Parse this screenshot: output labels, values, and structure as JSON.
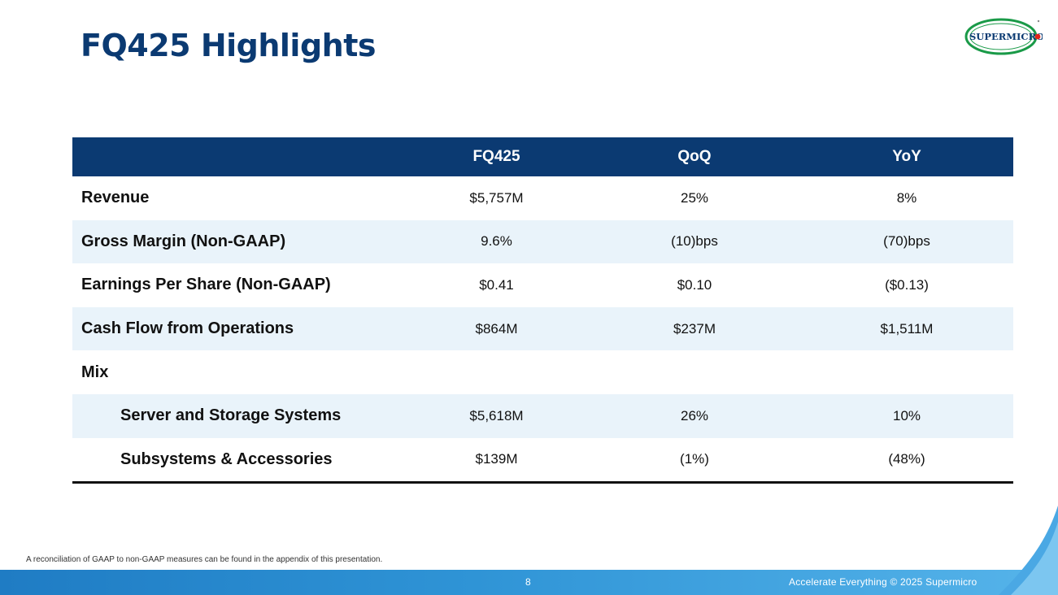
{
  "title": "FQ425 Highlights",
  "logo": {
    "text": "SUPERMICRO"
  },
  "table": {
    "headers": [
      "",
      "FQ425",
      "QoQ",
      "YoY"
    ],
    "rows": [
      {
        "label": "Revenue",
        "fq": "$5,757M",
        "qoq": "25%",
        "yoy": "8%"
      },
      {
        "label": "Gross Margin (Non-GAAP)",
        "fq": "9.6%",
        "qoq": "(10)bps",
        "yoy": "(70)bps"
      },
      {
        "label": "Earnings Per Share (Non-GAAP)",
        "fq": "$0.41",
        "qoq": "$0.10",
        "yoy": "($0.13)"
      },
      {
        "label": "Cash Flow from Operations",
        "fq": "$864M",
        "qoq": "$237M",
        "yoy": "$1,511M"
      },
      {
        "label": "Mix",
        "fq": "",
        "qoq": "",
        "yoy": ""
      },
      {
        "label": "Server and Storage Systems",
        "fq": "$5,618M",
        "qoq": "26%",
        "yoy": "10%"
      },
      {
        "label": "Subsystems & Accessories",
        "fq": "$139M",
        "qoq": "(1%)",
        "yoy": "(48%)"
      }
    ]
  },
  "footnote": "A reconciliation of GAAP to non-GAAP measures can be found in the appendix of this presentation.",
  "footer": {
    "page_number": "8",
    "text": "Accelerate Everything © 2025 Supermicro"
  },
  "colors": {
    "title": "#0b3a72",
    "header_bg": "#0b3a72",
    "alt_row": "#e9f3fa",
    "logo_green": "#1a9a48",
    "logo_red": "#e2231a"
  }
}
